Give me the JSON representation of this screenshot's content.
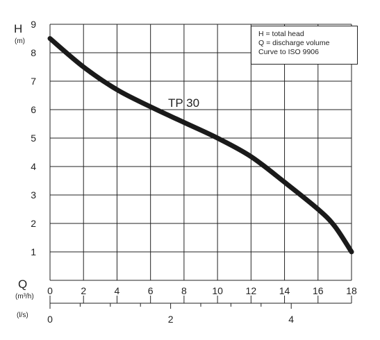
{
  "chart_data": {
    "type": "line",
    "title": "",
    "y_axis": {
      "letter": "H",
      "unit": "(m)",
      "range": [
        0,
        9
      ],
      "ticks": [
        1,
        2,
        3,
        4,
        5,
        6,
        7,
        8,
        9
      ]
    },
    "x_axis": {
      "letter": "Q",
      "unit": "(m³/h)",
      "range": [
        0,
        18
      ],
      "ticks": [
        0,
        2,
        4,
        6,
        8,
        10,
        12,
        14,
        16,
        18
      ]
    },
    "x2_axis": {
      "unit": "(l/s)",
      "range": [
        0,
        5
      ],
      "ticks": [
        0,
        2,
        4
      ]
    },
    "grid": true,
    "legend": {
      "position": "top-right",
      "lines": [
        "H = total head",
        "Q = discharge volume",
        "Curve to ISO 9906"
      ]
    },
    "series": [
      {
        "name": "TP 30",
        "x": [
          0,
          2,
          4,
          6,
          8,
          10,
          12,
          14,
          16,
          17,
          18
        ],
        "y": [
          8.5,
          7.5,
          6.7,
          6.1,
          5.55,
          5.0,
          4.35,
          3.45,
          2.5,
          1.9,
          1.0
        ]
      }
    ]
  }
}
